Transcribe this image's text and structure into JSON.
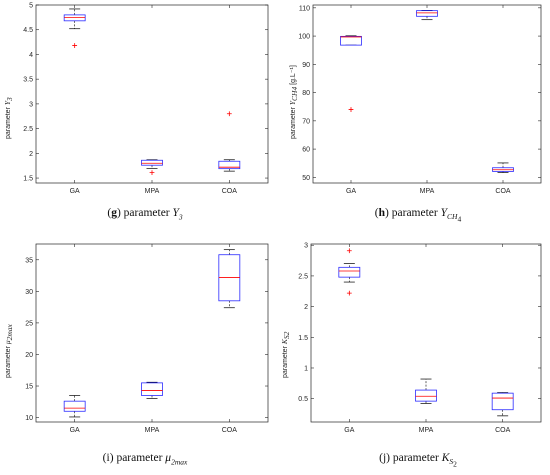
{
  "captions": [
    {
      "letter": "g",
      "prefix": " parameter ",
      "symbol": "Y",
      "sub": "3",
      "subsub": "",
      "bold_letter": true
    },
    {
      "letter": "h",
      "prefix": " parameter ",
      "symbol": "Y",
      "sub": "CH",
      "subsub": "4",
      "bold_letter": true
    },
    {
      "letter": "i",
      "prefix": " parameter ",
      "symbol": "μ",
      "sub": "2max",
      "subsub": "",
      "bold_letter": false
    },
    {
      "letter": "j",
      "prefix": " parameter ",
      "symbol": "K",
      "sub": "S",
      "subsub": "2",
      "bold_letter": false
    }
  ],
  "colors": {
    "box": "#2b2bff",
    "median": "#ff0000",
    "outlier": "#ff0000",
    "whisker": "#000000",
    "axis": "#262626"
  },
  "chart_data": [
    {
      "type": "box",
      "categories": [
        "GA",
        "MPA",
        "COA"
      ],
      "ylabel_prefix": "parameter",
      "ylabel_symbol": "Y",
      "ylabel_sub": "3",
      "ylabel_unit": "",
      "ylim": [
        1.4,
        5
      ],
      "yticks": [
        1.5,
        2,
        2.5,
        3,
        3.5,
        4,
        4.5,
        5
      ],
      "ytick_labels": [
        "1.5",
        "2",
        "2.5",
        "3",
        "3.5",
        "4",
        "4.5",
        "5"
      ],
      "boxes": [
        {
          "whisker_low": 4.52,
          "q1": 4.68,
          "median": 4.75,
          "q3": 4.8,
          "whisker_high": 4.92,
          "outliers": [
            4.18
          ]
        },
        {
          "whisker_low": 1.69,
          "q1": 1.76,
          "median": 1.8,
          "q3": 1.86,
          "whisker_high": 1.87,
          "outliers": [
            1.61
          ]
        },
        {
          "whisker_low": 1.64,
          "q1": 1.69,
          "median": 1.72,
          "q3": 1.84,
          "whisker_high": 1.87,
          "outliers": [
            2.8
          ]
        }
      ]
    },
    {
      "type": "box",
      "categories": [
        "GA",
        "MPA",
        "COA"
      ],
      "ylabel_prefix": "parameter",
      "ylabel_symbol": "Y",
      "ylabel_sub": "CH4",
      "ylabel_unit": "[g.L⁻¹]",
      "ylim": [
        48,
        111
      ],
      "yticks": [
        50,
        60,
        70,
        80,
        90,
        100,
        110
      ],
      "ytick_labels": [
        "50",
        "60",
        "70",
        "80",
        "90",
        "100",
        "110"
      ],
      "boxes": [
        {
          "whisker_low": 96.8,
          "q1": 96.8,
          "median": 99.7,
          "q3": 99.9,
          "whisker_high": 100.1,
          "outliers": [
            74
          ]
        },
        {
          "whisker_low": 105.8,
          "q1": 107.0,
          "median": 108.2,
          "q3": 109.0,
          "whisker_high": 109.1,
          "outliers": []
        },
        {
          "whisker_low": 51.7,
          "q1": 52.1,
          "median": 52.7,
          "q3": 53.4,
          "whisker_high": 55.1,
          "outliers": []
        }
      ]
    },
    {
      "type": "box",
      "categories": [
        "GA",
        "MPA",
        "COA"
      ],
      "ylabel_prefix": "parameter",
      "ylabel_symbol": "μ",
      "ylabel_sub": "2max",
      "ylabel_unit": "",
      "ylim": [
        9.3,
        37.5
      ],
      "yticks": [
        10,
        15,
        20,
        25,
        30,
        35
      ],
      "ytick_labels": [
        "10",
        "15",
        "20",
        "25",
        "30",
        "35"
      ],
      "boxes": [
        {
          "whisker_low": 10.1,
          "q1": 11.0,
          "median": 11.5,
          "q3": 12.6,
          "whisker_high": 13.5,
          "outliers": []
        },
        {
          "whisker_low": 13.0,
          "q1": 13.5,
          "median": 14.3,
          "q3": 15.5,
          "whisker_high": 15.6,
          "outliers": []
        },
        {
          "whisker_low": 27.4,
          "q1": 28.5,
          "median": 32.2,
          "q3": 35.8,
          "whisker_high": 36.6,
          "outliers": []
        }
      ]
    },
    {
      "type": "box",
      "categories": [
        "GA",
        "MPA",
        "COA"
      ],
      "ylabel_prefix": "parameter",
      "ylabel_symbol": "K",
      "ylabel_sub": "S2",
      "ylabel_unit": "",
      "ylim": [
        0.12,
        3.02
      ],
      "yticks": [
        0.5,
        1,
        1.5,
        2,
        2.5,
        3
      ],
      "ytick_labels": [
        "0.5",
        "1",
        "1.5",
        "2",
        "2.5",
        "3"
      ],
      "boxes": [
        {
          "whisker_low": 2.4,
          "q1": 2.48,
          "median": 2.58,
          "q3": 2.64,
          "whisker_high": 2.7,
          "outliers": [
            2.91,
            2.22
          ]
        },
        {
          "whisker_low": 0.42,
          "q1": 0.46,
          "median": 0.54,
          "q3": 0.64,
          "whisker_high": 0.82,
          "outliers": []
        },
        {
          "whisker_low": 0.22,
          "q1": 0.32,
          "median": 0.51,
          "q3": 0.59,
          "whisker_high": 0.6,
          "outliers": []
        }
      ]
    }
  ]
}
